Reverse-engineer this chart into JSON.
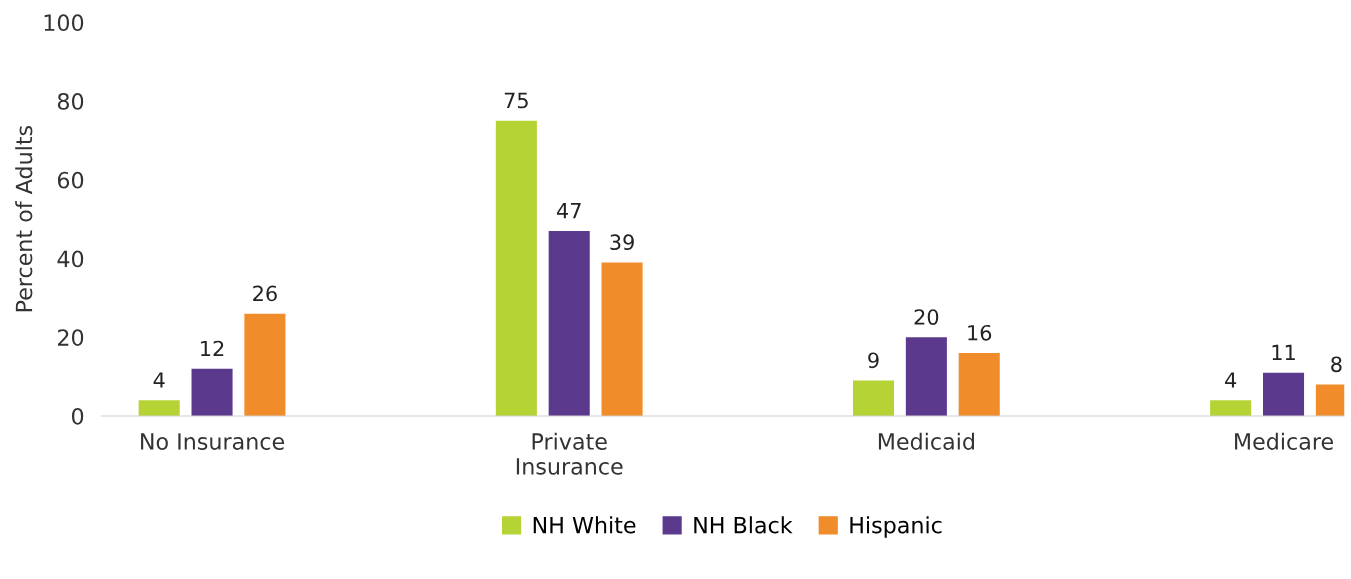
{
  "chart_data": {
    "type": "bar",
    "ylabel": "Percent of Adults",
    "categories": [
      "No Insurance",
      "Private\nInsurance",
      "Medicaid",
      "Medicare"
    ],
    "series": [
      {
        "name": "NH White",
        "color": "#b5d334",
        "values": [
          4,
          75,
          9,
          4
        ]
      },
      {
        "name": "NH Black",
        "color": "#5b3a8e",
        "values": [
          12,
          47,
          20,
          11
        ]
      },
      {
        "name": "Hispanic",
        "color": "#f08c2a",
        "values": [
          26,
          39,
          16,
          8
        ]
      }
    ],
    "ylim": [
      0,
      100
    ],
    "yticks": [
      0,
      20,
      40,
      60,
      80,
      100
    ],
    "grid": false,
    "legend": "bottom",
    "data_labels": true
  }
}
